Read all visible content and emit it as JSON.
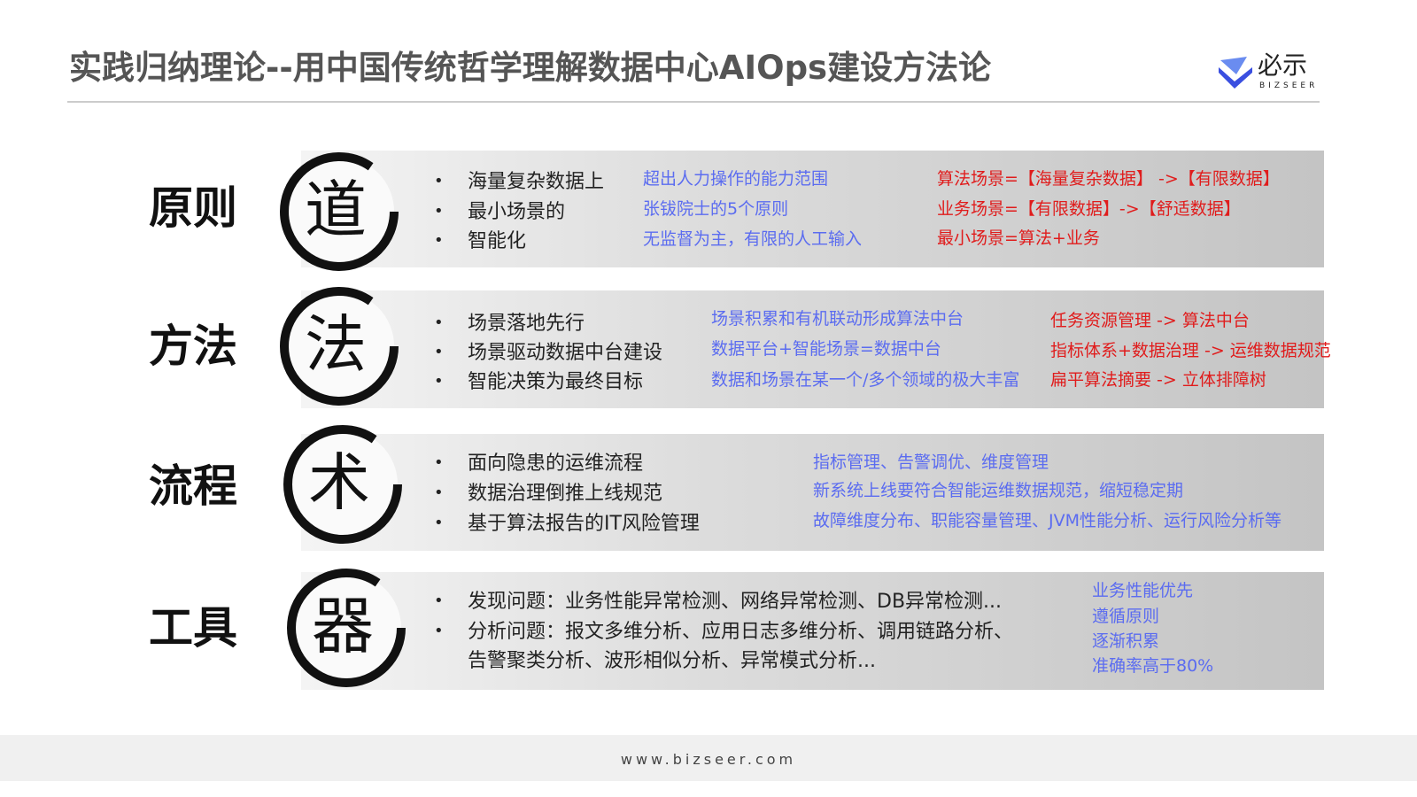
{
  "title": "实践归纳理论--用中国传统哲学理解数据中心AIOps建设方法论",
  "logo": {
    "cn": "必示",
    "en": "BIZSEER"
  },
  "colors": {
    "blue": "#5b6cf0",
    "red": "#e01c1c",
    "title": "#555555"
  },
  "rows": [
    {
      "label": "原则",
      "emblem": "道",
      "bullets": [
        "海量复杂数据上",
        "最小场景的",
        "智能化"
      ],
      "blue": [
        "超出人力操作的能力范围",
        "张钹院士的5个原则",
        "无监督为主，有限的人工输入"
      ],
      "red": [
        "算法场景=【海量复杂数据】 ->【有限数据】",
        "业务场景=【有限数据】->【舒适数据】",
        "最小场景=算法+业务"
      ]
    },
    {
      "label": "方法",
      "emblem": "法",
      "bullets": [
        "场景落地先行",
        "场景驱动数据中台建设",
        "智能决策为最终目标"
      ],
      "blue": [
        "场景积累和有机联动形成算法中台",
        "数据平台+智能场景=数据中台",
        "数据和场景在某一个/多个领域的极大丰富"
      ],
      "red": [
        "任务资源管理 -> 算法中台",
        "指标体系+数据治理 -> 运维数据规范",
        "扁平算法摘要 -> 立体排障树"
      ]
    },
    {
      "label": "流程",
      "emblem": "术",
      "bullets": [
        "面向隐患的运维流程",
        "数据治理倒推上线规范",
        "基于算法报告的IT风险管理"
      ],
      "blue": [
        "指标管理、告警调优、维度管理",
        "新系统上线要符合智能运维数据规范，缩短稳定期",
        "故障维度分布、职能容量管理、JVM性能分析、运行风险分析等"
      ]
    },
    {
      "label": "工具",
      "emblem": "器",
      "bullets": [
        "发现问题：业务性能异常检测、网络异常检测、DB异常检测...",
        "分析问题：报文多维分析、应用日志多维分析、调用链路分析、"
      ],
      "continuation": "告警聚类分析、波形相似分析、异常模式分析...",
      "blue": [
        "业务性能优先",
        "遵循原则",
        "逐渐积累",
        "准确率高于80%"
      ]
    }
  ],
  "footer": "www.bizseer.com"
}
